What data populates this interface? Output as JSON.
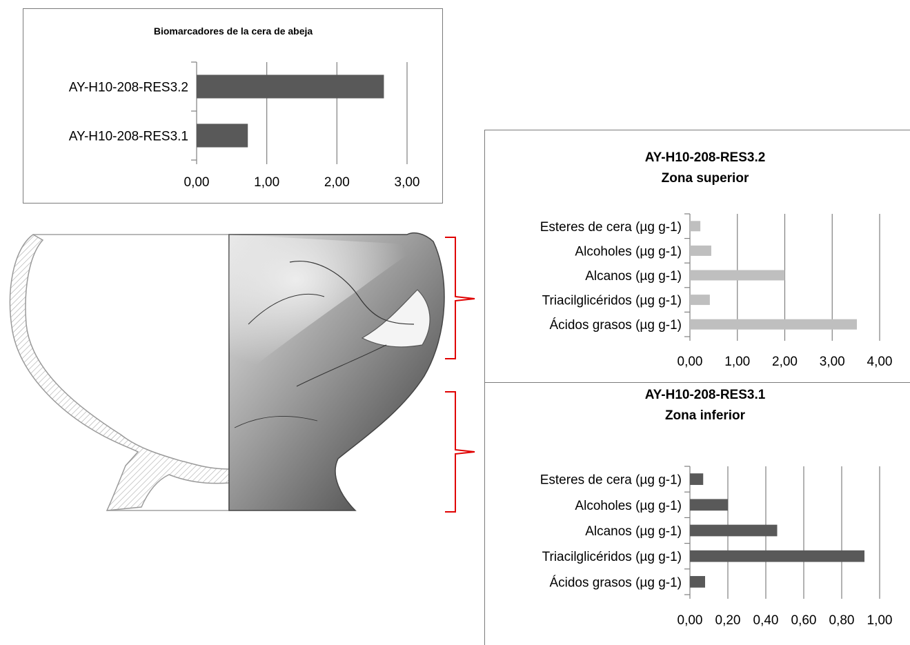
{
  "colors": {
    "dark_bar": "#595959",
    "light_bar": "#bfbfbf",
    "gridline": "#7f7f7f",
    "bracket": "#e00000",
    "vessel_line": "#9a9a9a"
  },
  "chart_data": [
    {
      "id": "beeswax",
      "type": "bar",
      "orientation": "horizontal",
      "title": "Biomarcadores de la cera de abeja",
      "subtitle": "",
      "categories": [
        "AY-H10-208-RES3.2",
        "AY-H10-208-RES3.1"
      ],
      "values": [
        2.67,
        0.73
      ],
      "xlim": [
        0,
        3
      ],
      "xticks": [
        "0,00",
        "1,00",
        "2,00",
        "3,00"
      ],
      "grid": true,
      "legend": "none"
    },
    {
      "id": "upper",
      "type": "bar",
      "orientation": "horizontal",
      "title": "AY-H10-208-RES3.2",
      "subtitle": "Zona superior",
      "categories": [
        "Esteres de cera (µg g-1)",
        "Alcoholes (µg g-1)",
        "Alcanos (µg g-1)",
        "Triacilglicéridos (µg g-1)",
        "Ácidos grasos (µg g-1)"
      ],
      "values": [
        0.22,
        0.45,
        2.0,
        0.42,
        3.52
      ],
      "xlim": [
        0,
        4
      ],
      "xticks": [
        "0,00",
        "1,00",
        "2,00",
        "3,00",
        "4,00"
      ],
      "grid": true,
      "legend": "none"
    },
    {
      "id": "lower",
      "type": "bar",
      "orientation": "horizontal",
      "title": "AY-H10-208-RES3.1",
      "subtitle": "Zona inferior",
      "categories": [
        "Esteres de cera (µg g-1)",
        "Alcoholes (µg g-1)",
        "Alcanos (µg g-1)",
        "Triacilglicéridos (µg g-1)",
        "Ácidos grasos (µg g-1)"
      ],
      "values": [
        0.07,
        0.2,
        0.46,
        0.92,
        0.08
      ],
      "xlim": [
        0,
        1
      ],
      "xticks": [
        "0,00",
        "0,20",
        "0,40",
        "0,60",
        "0,80",
        "1,00"
      ],
      "grid": true,
      "legend": "none"
    }
  ],
  "vessel": {
    "description_icon": "vessel-profile-drawing"
  }
}
